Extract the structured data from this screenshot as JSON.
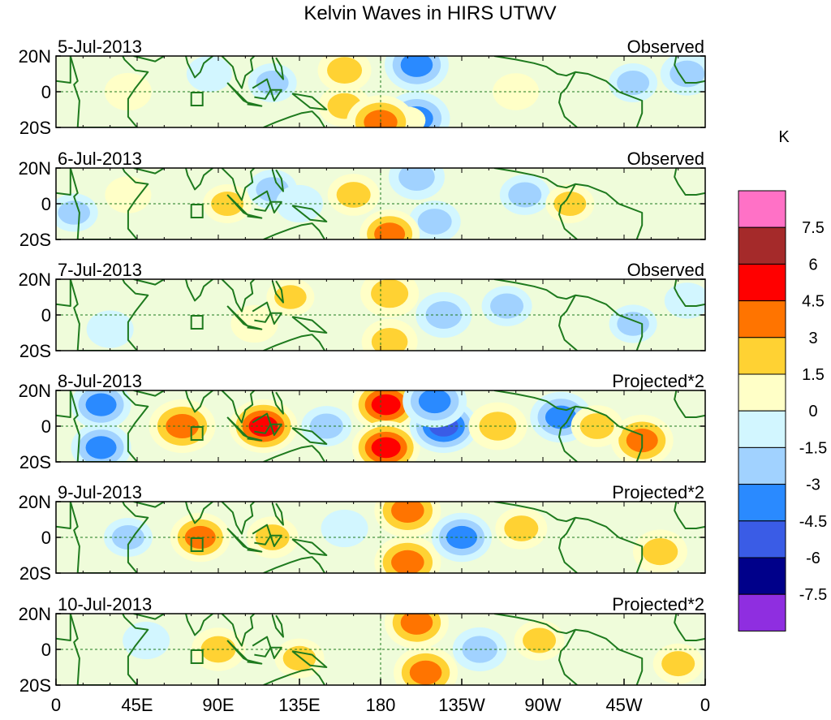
{
  "title": "Kelvin Waves in HIRS UTWV",
  "chart_data": {
    "type": "heatmap",
    "title": "Kelvin Waves in HIRS UTWV",
    "x_ticks": [
      "0",
      "45E",
      "90E",
      "135E",
      "180",
      "135W",
      "90W",
      "45W",
      "0"
    ],
    "y_ticks": [
      "20N",
      "0",
      "20S"
    ],
    "xlim_deg_east": [
      0,
      360
    ],
    "ylim_deg_lat": [
      -20,
      20
    ],
    "panels": [
      {
        "date": "5-Jul-2013",
        "label": "Observed",
        "blobs": [
          {
            "lon": 160,
            "lat": 12,
            "v": 2.2
          },
          {
            "lon": 160,
            "lat": -8,
            "v": 2.0
          },
          {
            "lon": 200,
            "lat": 15,
            "v": -3.5
          },
          {
            "lon": 200,
            "lat": -15,
            "v": -3.8
          },
          {
            "lon": 195,
            "lat": -16,
            "v": 0
          },
          {
            "lon": 180,
            "lat": -17,
            "v": 4.0
          },
          {
            "lon": 120,
            "lat": 5,
            "v": -1.6
          },
          {
            "lon": 40,
            "lat": 0,
            "v": 1.4
          },
          {
            "lon": 255,
            "lat": 0,
            "v": 1.3
          },
          {
            "lon": 320,
            "lat": 5,
            "v": -1.6
          },
          {
            "lon": 350,
            "lat": 10,
            "v": -2.2
          },
          {
            "lon": 85,
            "lat": 10,
            "v": -1.2
          }
        ]
      },
      {
        "date": "6-Jul-2013",
        "label": "Observed",
        "blobs": [
          {
            "lon": 165,
            "lat": 5,
            "v": 2.0
          },
          {
            "lon": 200,
            "lat": 15,
            "v": -2.5
          },
          {
            "lon": 210,
            "lat": -10,
            "v": -2.0
          },
          {
            "lon": 185,
            "lat": -17,
            "v": 3.0
          },
          {
            "lon": 95,
            "lat": 0,
            "v": 1.6
          },
          {
            "lon": 120,
            "lat": 8,
            "v": -1.7
          },
          {
            "lon": 135,
            "lat": 0,
            "v": -1.4
          },
          {
            "lon": 260,
            "lat": 5,
            "v": -1.8
          },
          {
            "lon": 285,
            "lat": 0,
            "v": 1.6
          },
          {
            "lon": 40,
            "lat": 5,
            "v": 1.3
          },
          {
            "lon": 10,
            "lat": -5,
            "v": -1.5
          }
        ]
      },
      {
        "date": "7-Jul-2013",
        "label": "Observed",
        "blobs": [
          {
            "lon": 185,
            "lat": 12,
            "v": 2.8
          },
          {
            "lon": 185,
            "lat": -15,
            "v": 2.5
          },
          {
            "lon": 215,
            "lat": 0,
            "v": -2.5
          },
          {
            "lon": 250,
            "lat": 5,
            "v": -1.8
          },
          {
            "lon": 130,
            "lat": 10,
            "v": 1.5
          },
          {
            "lon": 110,
            "lat": -5,
            "v": 1.4
          },
          {
            "lon": 30,
            "lat": -8,
            "v": -1.4
          },
          {
            "lon": 320,
            "lat": -5,
            "v": -1.5
          },
          {
            "lon": 350,
            "lat": 8,
            "v": -1.2
          }
        ]
      },
      {
        "date": "8-Jul-2013",
        "label": "Projected*2",
        "blobs": [
          {
            "lon": 183,
            "lat": 12,
            "v": 5.0
          },
          {
            "lon": 183,
            "lat": -12,
            "v": 5.0
          },
          {
            "lon": 215,
            "lat": 0,
            "v": -5.0
          },
          {
            "lon": 210,
            "lat": 14,
            "v": -3.5
          },
          {
            "lon": 245,
            "lat": 0,
            "v": 2.8
          },
          {
            "lon": 280,
            "lat": 5,
            "v": -3.2
          },
          {
            "lon": 115,
            "lat": 0,
            "v": 4.5
          },
          {
            "lon": 70,
            "lat": 0,
            "v": 3.8
          },
          {
            "lon": 25,
            "lat": 12,
            "v": -3.0
          },
          {
            "lon": 25,
            "lat": -12,
            "v": -3.0
          },
          {
            "lon": 325,
            "lat": -8,
            "v": 3.3
          },
          {
            "lon": 300,
            "lat": 0,
            "v": 2.0
          },
          {
            "lon": 150,
            "lat": 0,
            "v": -1.8
          }
        ]
      },
      {
        "date": "9-Jul-2013",
        "label": "Projected*2",
        "blobs": [
          {
            "lon": 195,
            "lat": 15,
            "v": 3.8
          },
          {
            "lon": 195,
            "lat": -14,
            "v": 3.8
          },
          {
            "lon": 225,
            "lat": 0,
            "v": -3.0
          },
          {
            "lon": 258,
            "lat": 5,
            "v": 2.0
          },
          {
            "lon": 80,
            "lat": 0,
            "v": 3.0
          },
          {
            "lon": 120,
            "lat": 0,
            "v": 2.0
          },
          {
            "lon": 40,
            "lat": 0,
            "v": -1.6
          },
          {
            "lon": 335,
            "lat": -8,
            "v": 2.3
          },
          {
            "lon": 160,
            "lat": 5,
            "v": -1.4
          }
        ]
      },
      {
        "date": "10-Jul-2013",
        "label": "Projected*2",
        "blobs": [
          {
            "lon": 200,
            "lat": 15,
            "v": 3.5
          },
          {
            "lon": 205,
            "lat": -13,
            "v": 3.5
          },
          {
            "lon": 235,
            "lat": 0,
            "v": -2.3
          },
          {
            "lon": 268,
            "lat": 5,
            "v": 1.8
          },
          {
            "lon": 90,
            "lat": 0,
            "v": 2.2
          },
          {
            "lon": 135,
            "lat": -5,
            "v": 1.7
          },
          {
            "lon": 345,
            "lat": -8,
            "v": 1.8
          },
          {
            "lon": 50,
            "lat": 5,
            "v": -1.4
          }
        ]
      }
    ],
    "colorbar": {
      "unit": "K",
      "labels": [
        "7.5",
        "6",
        "4.5",
        "3",
        "1.5",
        "0",
        "-1.5",
        "-3",
        "-4.5",
        "-6",
        "-7.5"
      ],
      "colors": [
        "#ff71c6",
        "#a52a2a",
        "#ff0000",
        "#ff7400",
        "#ffd233",
        "#ffffc7",
        "#d2f6ff",
        "#a1d2ff",
        "#2a8aff",
        "#3a5ce6",
        "#00008a",
        "#8f2ee0"
      ]
    }
  }
}
